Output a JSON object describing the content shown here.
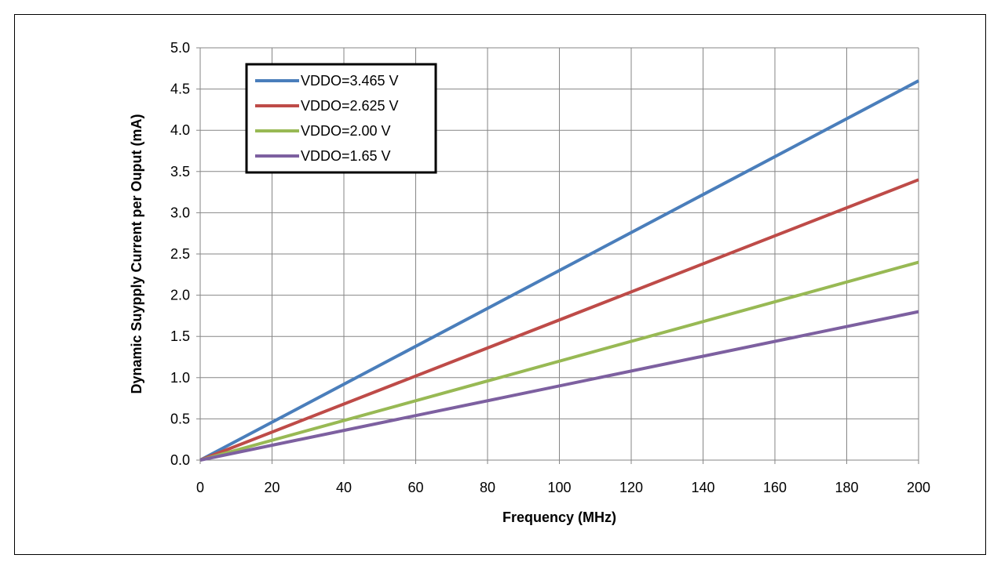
{
  "chart_data": {
    "type": "line",
    "title": "",
    "xlabel": "Frequency (MHz)",
    "ylabel": "Dynamic Suypply Current per Ouput (mA)",
    "xlim": [
      0,
      200
    ],
    "ylim": [
      0,
      5.0
    ],
    "x_ticks": [
      "0",
      "20",
      "40",
      "60",
      "80",
      "100",
      "120",
      "140",
      "160",
      "180",
      "200"
    ],
    "y_ticks": [
      "0.0",
      "0.5",
      "1.0",
      "1.5",
      "2.0",
      "2.5",
      "3.0",
      "3.5",
      "4.0",
      "4.5",
      "5.0"
    ],
    "grid": true,
    "legend_position": "top-left",
    "series": [
      {
        "name": "VDDO=3.465 V",
        "color": "#4a7ebb",
        "x": [
          0,
          200
        ],
        "y": [
          0,
          4.6
        ]
      },
      {
        "name": "VDDO=2.625 V",
        "color": "#be4b48",
        "x": [
          0,
          200
        ],
        "y": [
          0,
          3.4
        ]
      },
      {
        "name": "VDDO=2.00 V",
        "color": "#98b954",
        "x": [
          0,
          200
        ],
        "y": [
          0,
          2.4
        ]
      },
      {
        "name": "VDDO=1.65 V",
        "color": "#7d60a0",
        "x": [
          0,
          200
        ],
        "y": [
          0,
          1.8
        ]
      }
    ]
  }
}
